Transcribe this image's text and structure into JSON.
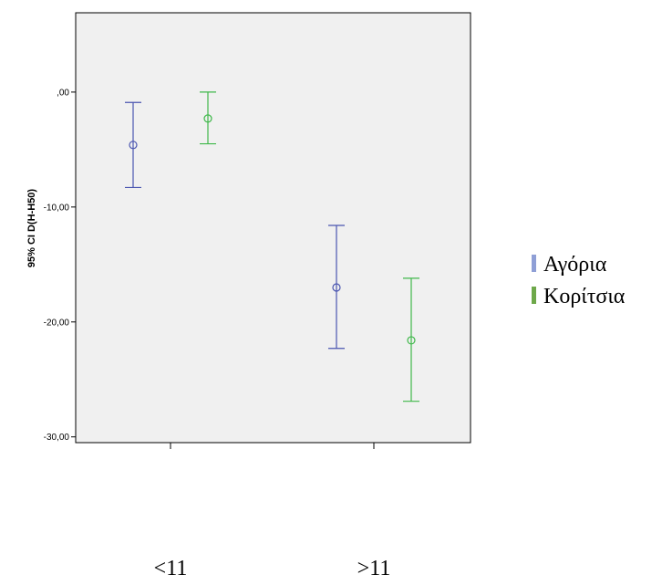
{
  "chart_data": {
    "type": "errorbar",
    "ylabel": "95% CI D(H-H50)",
    "ylim": [
      -30.5,
      6.9
    ],
    "yticks": [
      0,
      -10,
      -20,
      -30
    ],
    "ytick_labels": [
      ",00",
      "-10,00",
      "-20,00",
      "-30,00"
    ],
    "categories": [
      "<11",
      ">11"
    ],
    "grid": false,
    "legend_position": "right",
    "series": [
      {
        "name": "Αγόρια",
        "color": "#4a55b0",
        "legend_color": "#8f9fd6",
        "points": [
          {
            "category": "<11",
            "mean": -4.6,
            "lower": -8.3,
            "upper": -0.9
          },
          {
            "category": ">11",
            "mean": -17.0,
            "lower": -22.3,
            "upper": -11.6
          }
        ]
      },
      {
        "name": "Κορίτσια",
        "color": "#3fb84a",
        "legend_color": "#6ea84a",
        "points": [
          {
            "category": "<11",
            "mean": -2.3,
            "lower": -4.5,
            "upper": 0.0
          },
          {
            "category": ">11",
            "mean": -21.6,
            "lower": -26.9,
            "upper": -16.2
          }
        ]
      }
    ]
  }
}
